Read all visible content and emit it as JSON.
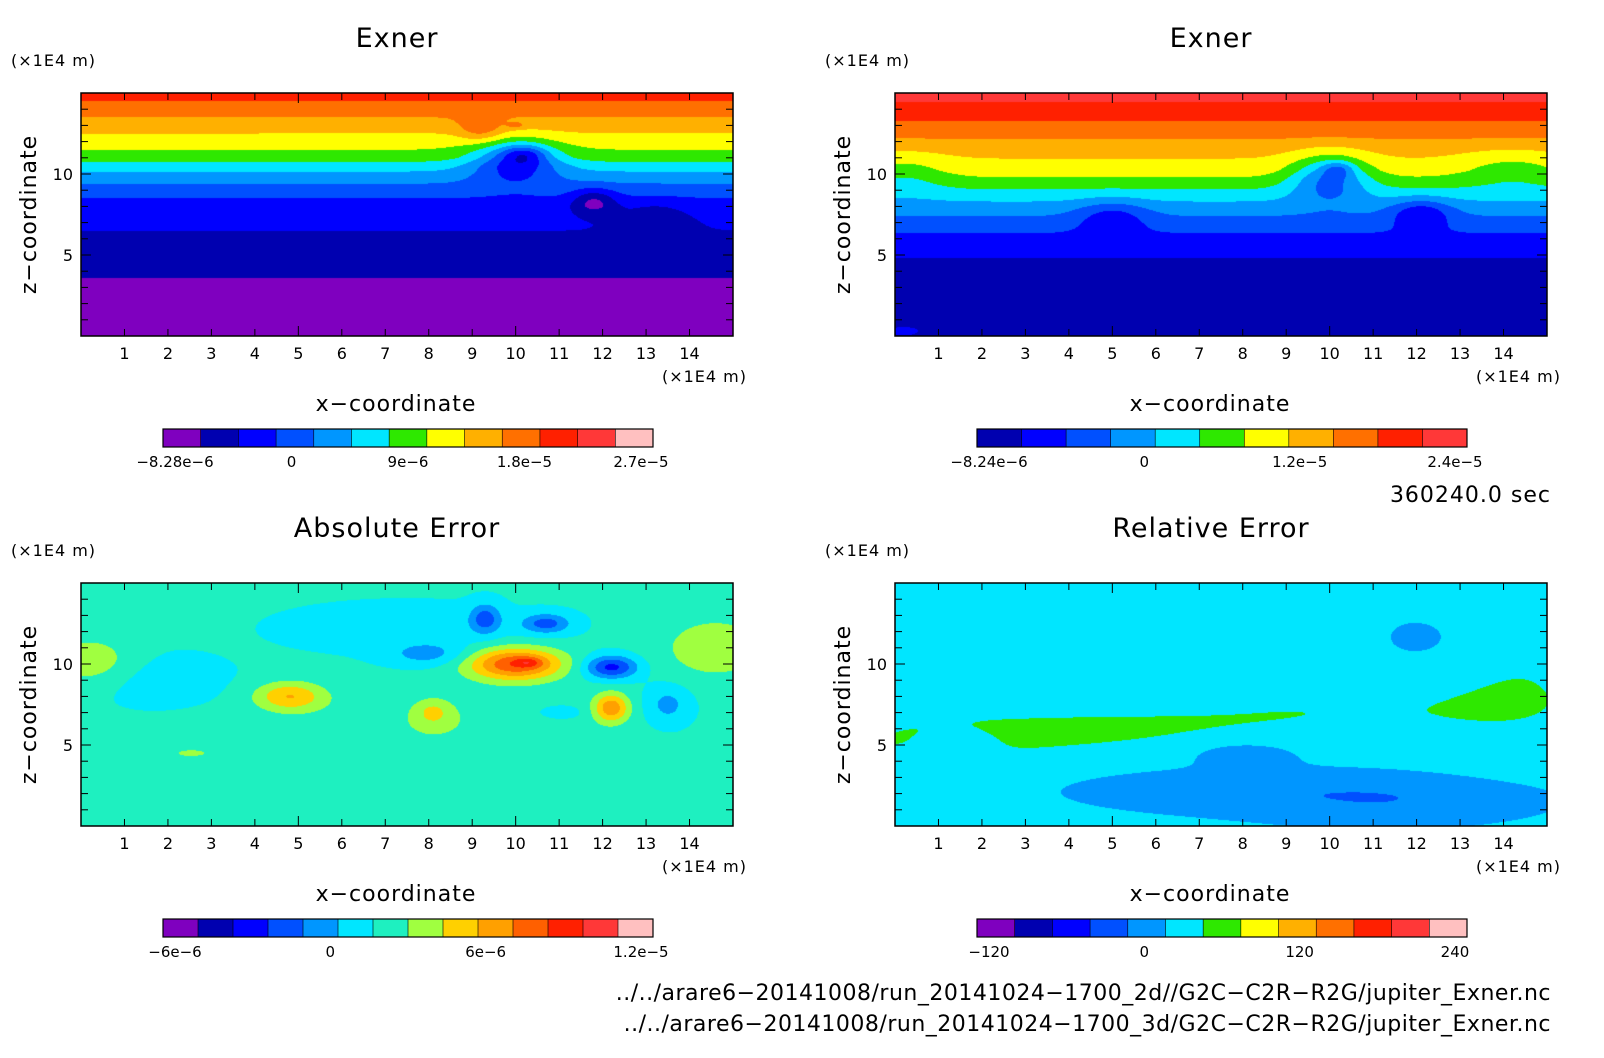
{
  "chart_data": [
    {
      "type": "heatmap",
      "title": "Exner",
      "xlabel": "x−coordinate",
      "ylabel": "z−coordinate",
      "x_unit": "(×1E4 m)",
      "y_unit": "(×1E4 m)",
      "xlim": [
        0,
        15
      ],
      "ylim": [
        0,
        15
      ],
      "x_ticks": [
        1,
        2,
        3,
        4,
        5,
        6,
        7,
        8,
        9,
        10,
        11,
        12,
        13,
        14
      ],
      "y_ticks": [
        5,
        10
      ],
      "colorbar": {
        "colors": [
          "#7f00bf",
          "#0000b0",
          "#0000ff",
          "#0050ff",
          "#0096ff",
          "#00e6ff",
          "#2ee800",
          "#ffff00",
          "#ffb000",
          "#ff7000",
          "#ff2000",
          "#ff3838",
          "#ffc0c0"
        ],
        "tick_labels": [
          "−8.28e−6",
          "0",
          "9e−6",
          "1.8e−5",
          "2.7e−5"
        ]
      },
      "field": {
        "base": [
          [
            0,
            0
          ],
          [
            2.2,
            0
          ],
          [
            5,
            1
          ],
          [
            8,
            2
          ],
          [
            9,
            3
          ],
          [
            9.8,
            4
          ],
          [
            10.5,
            5
          ],
          [
            11,
            6
          ],
          [
            12,
            7
          ],
          [
            13,
            8
          ],
          [
            14,
            9
          ],
          [
            15,
            10
          ]
        ],
        "features": [
          {
            "x": 11.8,
            "z": 8.3,
            "rx": 0.5,
            "rz": 0.8,
            "d": -2
          },
          {
            "x": 10.0,
            "z": 10.8,
            "rx": 1.0,
            "rz": 1.3,
            "d": -3
          },
          {
            "x": 10.2,
            "z": 11.2,
            "rx": 0.5,
            "rz": 0.6,
            "d": -2
          },
          {
            "x": 9.2,
            "z": 12.8,
            "rx": 0.5,
            "rz": 0.8,
            "d": 1.5
          },
          {
            "x": 13.2,
            "z": 7.0,
            "rx": 0.8,
            "rz": 1.2,
            "d": -1
          },
          {
            "x": 10.0,
            "z": 13.0,
            "rx": 0.2,
            "rz": 0.2,
            "d": 1
          }
        ]
      }
    },
    {
      "type": "heatmap",
      "title": "Exner",
      "xlabel": "x−coordinate",
      "ylabel": "z−coordinate",
      "x_unit": "(×1E4 m)",
      "y_unit": "(×1E4 m)",
      "xlim": [
        0,
        15
      ],
      "ylim": [
        0,
        15
      ],
      "x_ticks": [
        1,
        2,
        3,
        4,
        5,
        6,
        7,
        8,
        9,
        10,
        11,
        12,
        13,
        14
      ],
      "y_ticks": [
        5,
        10
      ],
      "colorbar": {
        "colors": [
          "#0000b0",
          "#0000ff",
          "#0050ff",
          "#0096ff",
          "#00e6ff",
          "#2ee800",
          "#ffff00",
          "#ffb000",
          "#ff7000",
          "#ff2000",
          "#ff3838"
        ],
        "tick_labels": [
          "−8.24e−6",
          "0",
          "1.2e−5",
          "2.4e−5"
        ]
      },
      "field": {
        "base": [
          [
            0,
            0
          ],
          [
            3.8,
            0
          ],
          [
            5.8,
            1
          ],
          [
            6.9,
            2
          ],
          [
            7.9,
            3
          ],
          [
            8.7,
            4
          ],
          [
            9.4,
            5
          ],
          [
            10.2,
            6
          ],
          [
            11.7,
            7
          ],
          [
            12.6,
            8
          ],
          [
            13.9,
            9
          ],
          [
            15,
            10
          ]
        ],
        "features": [
          {
            "x": 10.0,
            "z": 9.8,
            "rx": 0.9,
            "rz": 1.4,
            "d": -3
          },
          {
            "x": 10.2,
            "z": 10.3,
            "rx": 0.35,
            "rz": 0.5,
            "d": -1.5
          },
          {
            "x": 12.1,
            "z": 7.6,
            "rx": 0.7,
            "rz": 0.9,
            "d": -2
          },
          {
            "x": 5.0,
            "z": 7.4,
            "rx": 0.8,
            "rz": 1.0,
            "d": -1.5
          },
          {
            "x": 14.2,
            "z": 10.3,
            "rx": 1.2,
            "rz": 1.2,
            "d": -1
          },
          {
            "x": 0.2,
            "z": 10.0,
            "rx": 1.0,
            "rz": 1.3,
            "d": -1
          },
          {
            "x": 0.2,
            "z": 0.3,
            "rx": 0.4,
            "rz": 0.3,
            "d": 1
          }
        ]
      }
    },
    {
      "type": "heatmap",
      "title": "Absolute Error",
      "xlabel": "x−coordinate",
      "ylabel": "z−coordinate",
      "x_unit": "(×1E4 m)",
      "y_unit": "(×1E4 m)",
      "xlim": [
        0,
        15
      ],
      "ylim": [
        0,
        15
      ],
      "x_ticks": [
        1,
        2,
        3,
        4,
        5,
        6,
        7,
        8,
        9,
        10,
        11,
        12,
        13,
        14
      ],
      "y_ticks": [
        5,
        10
      ],
      "colorbar": {
        "colors": [
          "#7f00bf",
          "#0000b0",
          "#0000ff",
          "#0050ff",
          "#0096ff",
          "#00e6ff",
          "#1ef0c0",
          "#a0ff40",
          "#ffd000",
          "#ffa000",
          "#ff6000",
          "#ff2000",
          "#ff3838",
          "#ffc0c0"
        ],
        "tick_labels": [
          "−6e−6",
          "0",
          "6e−6",
          "1.2e−5"
        ]
      },
      "field": {
        "base": [
          [
            0,
            5.6
          ]
        ],
        "features": [
          {
            "x": 7.5,
            "z": 2.5,
            "rx": 3.5,
            "rz": 3.0,
            "d": 0.7
          },
          {
            "x": 8.5,
            "z": 6.5,
            "rx": 3.5,
            "rz": 2.0,
            "d": 0.7
          },
          {
            "x": 0.2,
            "z": 10.2,
            "rx": 1.0,
            "rz": 1.5,
            "d": 1.6
          },
          {
            "x": 14.6,
            "z": 11.0,
            "rx": 1.3,
            "rz": 2.0,
            "d": 1.6
          },
          {
            "x": 4.8,
            "z": 8.0,
            "rx": 0.8,
            "rz": 0.9,
            "d": 2.8
          },
          {
            "x": 1.8,
            "z": 9.0,
            "rx": 1.5,
            "rz": 1.5,
            "d": -0.6
          },
          {
            "x": 7.5,
            "z": 12.2,
            "rx": 2.6,
            "rz": 1.4,
            "d": -0.6
          },
          {
            "x": 8.0,
            "z": 10.6,
            "rx": 0.9,
            "rz": 0.7,
            "d": -1.5
          },
          {
            "x": 10.0,
            "z": 10.0,
            "rx": 1.1,
            "rz": 1.0,
            "d": 4.8
          },
          {
            "x": 10.3,
            "z": 10.1,
            "rx": 0.3,
            "rz": 0.3,
            "d": 1.5
          },
          {
            "x": 9.3,
            "z": 12.8,
            "rx": 0.35,
            "rz": 0.9,
            "d": -2.5
          },
          {
            "x": 10.7,
            "z": 12.5,
            "rx": 0.55,
            "rz": 0.6,
            "d": -2.5
          },
          {
            "x": 12.2,
            "z": 9.8,
            "rx": 0.6,
            "rz": 0.7,
            "d": -3.5
          },
          {
            "x": 12.2,
            "z": 7.3,
            "rx": 0.4,
            "rz": 0.9,
            "d": 3.5
          },
          {
            "x": 13.5,
            "z": 7.5,
            "rx": 0.5,
            "rz": 1.2,
            "d": -1.5
          },
          {
            "x": 11.0,
            "z": 7.0,
            "rx": 0.6,
            "rz": 0.5,
            "d": -1.0
          },
          {
            "x": 8.1,
            "z": 7.0,
            "rx": 0.4,
            "rz": 0.8,
            "d": 1.6
          },
          {
            "x": 2.5,
            "z": 4.5,
            "rx": 1.0,
            "rz": 0.6,
            "d": 0.9
          }
        ]
      }
    },
    {
      "type": "heatmap",
      "title": "Relative Error",
      "xlabel": "x−coordinate",
      "ylabel": "z−coordinate",
      "x_unit": "(×1E4 m)",
      "y_unit": "(×1E4 m)",
      "xlim": [
        0,
        15
      ],
      "ylim": [
        0,
        15
      ],
      "x_ticks": [
        1,
        2,
        3,
        4,
        5,
        6,
        7,
        8,
        9,
        10,
        11,
        12,
        13,
        14
      ],
      "y_ticks": [
        5,
        10
      ],
      "colorbar": {
        "colors": [
          "#7f00bf",
          "#0000b0",
          "#0000ff",
          "#0050ff",
          "#0096ff",
          "#00e6ff",
          "#2ee800",
          "#ffff00",
          "#ffb000",
          "#ff7000",
          "#ff2000",
          "#ff3838",
          "#ffc0c0"
        ],
        "tick_labels": [
          "−120",
          "0",
          "120",
          "240"
        ]
      },
      "field": {
        "base": [
          [
            0,
            4.6
          ]
        ],
        "features": [
          {
            "x": 0,
            "z": 3.0,
            "rx": 4.5,
            "rz": 3.2,
            "d": 0.8
          },
          {
            "x": 3.2,
            "z": 5.8,
            "rx": 4.5,
            "rz": 1.4,
            "d": 0.8
          },
          {
            "x": 9.5,
            "z": 7.0,
            "rx": 5.5,
            "rz": 2.0,
            "d": 0.8
          },
          {
            "x": 14.5,
            "z": 10.0,
            "rx": 2.5,
            "rz": 5.5,
            "d": 0.8
          },
          {
            "x": 0.8,
            "z": 12.0,
            "rx": 1.4,
            "rz": 3.5,
            "d": 0.8
          },
          {
            "x": 9.5,
            "z": 11.5,
            "rx": 1.8,
            "rz": 2.5,
            "d": 0.8
          },
          {
            "x": 7.5,
            "z": 2.2,
            "rx": 5.0,
            "rz": 1.2,
            "d": -0.8
          },
          {
            "x": 1.5,
            "z": 5.2,
            "rx": 0.8,
            "rz": 0.8,
            "d": -0.8
          },
          {
            "x": 8.0,
            "z": 4.5,
            "rx": 1.2,
            "rz": 0.8,
            "d": -0.8
          },
          {
            "x": 11.5,
            "z": 1.5,
            "rx": 2.8,
            "rz": 1.2,
            "d": -0.8
          },
          {
            "x": 12.0,
            "z": 11.6,
            "rx": 0.9,
            "rz": 1.2,
            "d": -0.8
          }
        ]
      }
    }
  ],
  "time_label": "360240.0 sec",
  "file_paths": [
    "../../arare6−20141008/run_20141024−1700_2d//G2C−C2R−R2G/jupiter_Exner.nc",
    "../../arare6−20141008/run_20141024−1700_3d/G2C−C2R−R2G/jupiter_Exner.nc"
  ]
}
